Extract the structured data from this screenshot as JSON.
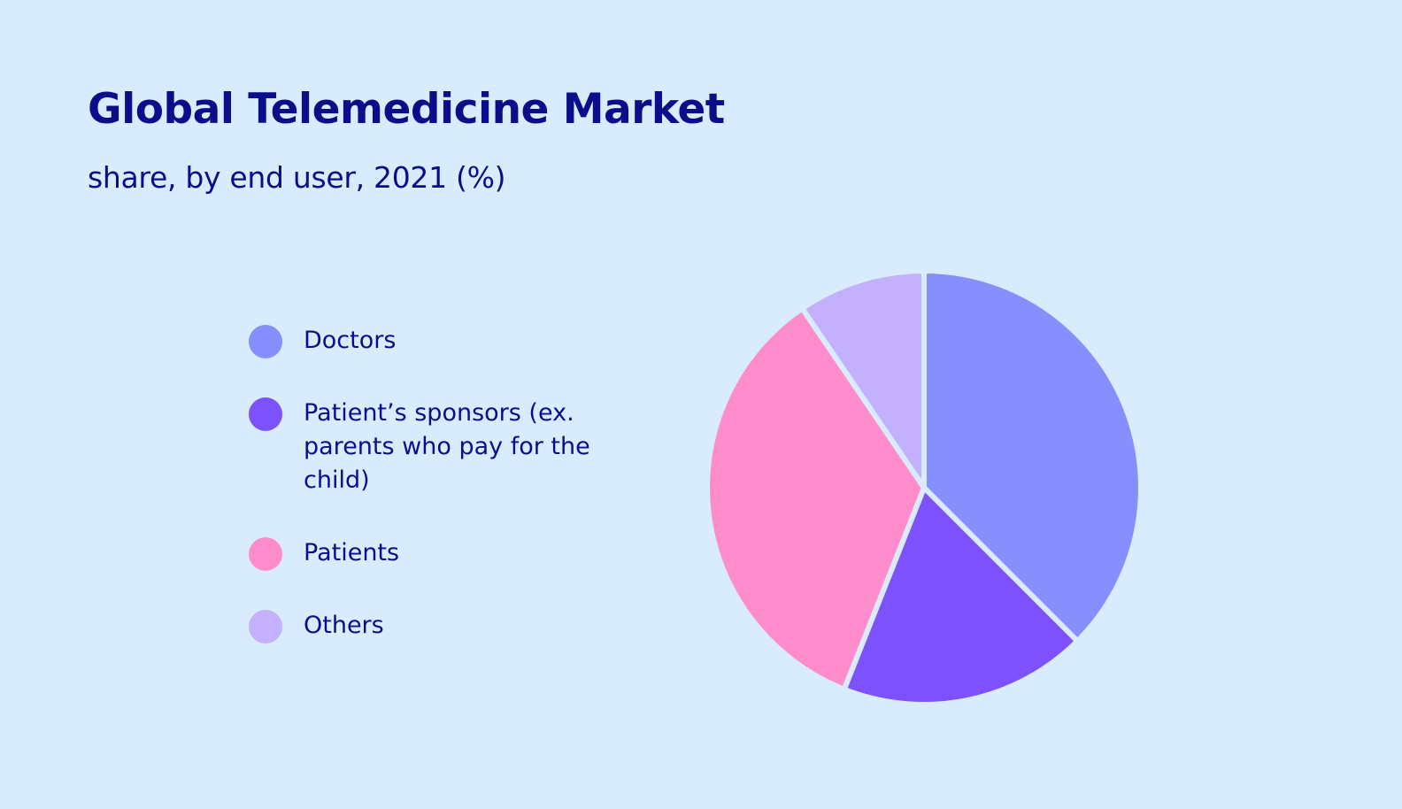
{
  "chart_data": {
    "type": "pie",
    "title": "Global Telemedicine Market",
    "subtitle": "share, by end user, 2021 (%)",
    "categories": [
      "Doctors",
      "Patient’s sponsors (ex. parents who pay for the child)",
      "Patients",
      "Others"
    ],
    "values": [
      37.5,
      18.5,
      34.5,
      9.5
    ],
    "colors": [
      "#868ffe",
      "#7d52fe",
      "#ff8ccc",
      "#c3b0fe"
    ],
    "separator_color": "#d9ecfd",
    "start_angle": "12 o'clock",
    "direction": "clockwise",
    "legend_position": "left"
  }
}
